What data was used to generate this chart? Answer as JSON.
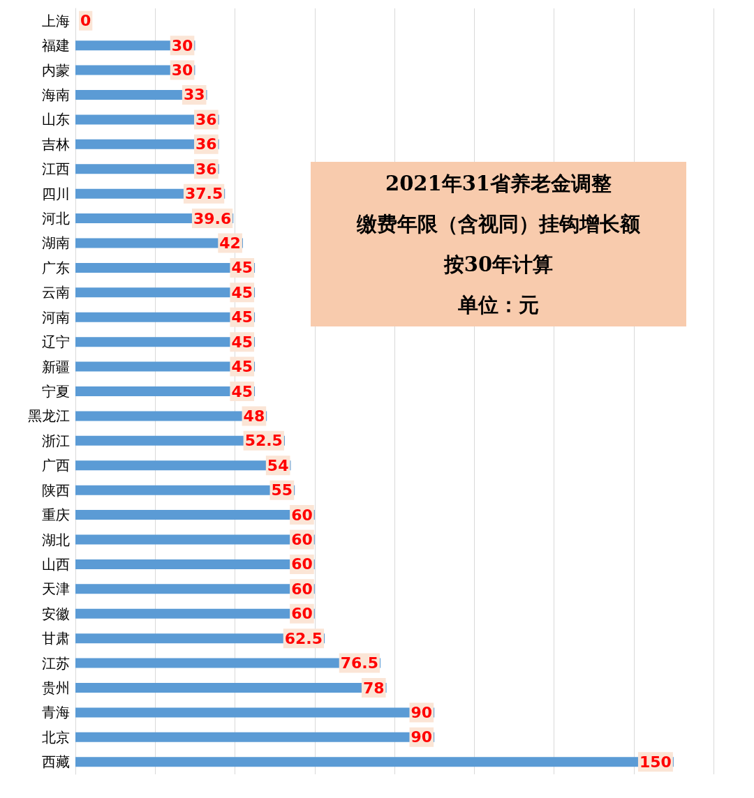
{
  "chart_data": {
    "type": "bar",
    "orientation": "horizontal",
    "categories": [
      "上海",
      "福建",
      "内蒙",
      "海南",
      "山东",
      "吉林",
      "江西",
      "四川",
      "河北",
      "湖南",
      "广东",
      "云南",
      "河南",
      "辽宁",
      "新疆",
      "宁夏",
      "黑龙江",
      "浙江",
      "广西",
      "陕西",
      "重庆",
      "湖北",
      "山西",
      "天津",
      "安徽",
      "甘肃",
      "江苏",
      "贵州",
      "青海",
      "北京",
      "西藏"
    ],
    "values": [
      0,
      30,
      30,
      33,
      36,
      36,
      36,
      37.5,
      39.6,
      42,
      45,
      45,
      45,
      45,
      45,
      45,
      48,
      52.5,
      54,
      55,
      60,
      60,
      60,
      60,
      60,
      62.5,
      76.5,
      78,
      90,
      90,
      150
    ],
    "color": "#5b9bd5",
    "xlim": [
      0,
      160
    ],
    "xticks": [
      {
        "value": 0,
        "label": null
      },
      {
        "value": 20,
        "label": null
      },
      {
        "value": 40,
        "label": null
      },
      {
        "value": 60,
        "label": null
      },
      {
        "value": 80,
        "label": null
      },
      {
        "value": 100,
        "label": null
      },
      {
        "value": 120,
        "label": null
      },
      {
        "value": 140,
        "label": null
      },
      {
        "value": 160,
        "label": null
      }
    ],
    "tick_labels": "y",
    "grid": "x",
    "data_labels": true,
    "annotations": [
      "2021年31省养老金调整",
      "缴费年限（含视同）挂钩增长额",
      "按30年计算",
      "单位：元"
    ]
  }
}
